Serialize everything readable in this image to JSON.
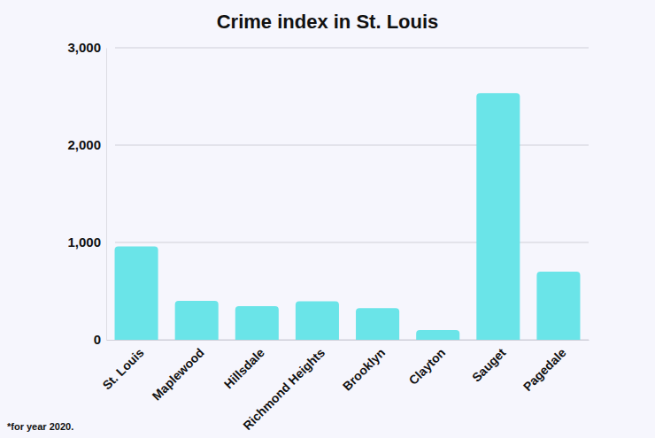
{
  "chart_data": {
    "type": "bar",
    "title": "Crime index in St. Louis",
    "categories": [
      "St. Louis",
      "Maplewood",
      "Hillsdale",
      "Richmond Heights",
      "Brooklyn",
      "Clayton",
      "Sauget",
      "Pagedale"
    ],
    "values": [
      960,
      400,
      345,
      395,
      325,
      100,
      2535,
      700
    ],
    "color": "#6ae4e8",
    "ylim": [
      0,
      3000
    ],
    "yticks": [
      0,
      {
        "value": 1000,
        "label": "1,000"
      },
      {
        "value": 2000,
        "label": "2,000"
      },
      {
        "value": 3000,
        "label": "3,000"
      }
    ],
    "grid": true,
    "annotations": [
      "*for year 2020."
    ]
  }
}
